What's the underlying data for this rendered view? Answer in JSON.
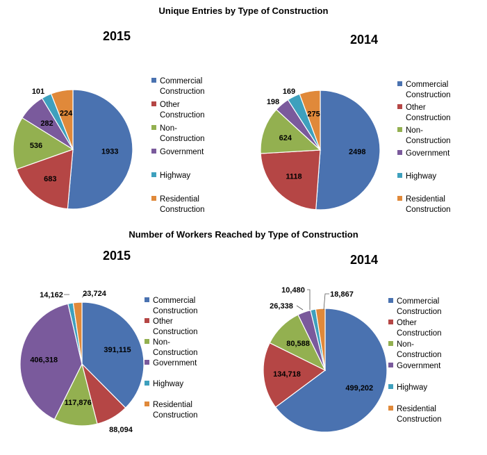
{
  "titles": {
    "top": "Unique Entries by Type of Construction",
    "bottom": "Number of Workers Reached by Type of Construction"
  },
  "legend": [
    {
      "label": "Commercial Construction",
      "color": "#4a72b0"
    },
    {
      "label": "Other Construction",
      "color": "#b54645"
    },
    {
      "label": "Non-Construction",
      "color": "#93b050"
    },
    {
      "label": "Government",
      "color": "#7a5a9c"
    },
    {
      "label": "Highway",
      "color": "#3ea0bd"
    },
    {
      "label": "Residential Construction",
      "color": "#e0893a"
    }
  ],
  "chart_data": [
    {
      "type": "pie",
      "section": "Unique Entries by Type of Construction",
      "title": "2015",
      "categories": [
        "Commercial Construction",
        "Other Construction",
        "Non-Construction",
        "Government",
        "Highway",
        "Residential Construction"
      ],
      "values": [
        1933,
        683,
        536,
        282,
        101,
        224
      ],
      "labels": [
        "1933",
        "683",
        "536",
        "282",
        "101",
        "224"
      ],
      "legend_position": "right"
    },
    {
      "type": "pie",
      "section": "Unique Entries by Type of Construction",
      "title": "2014",
      "categories": [
        "Commercial Construction",
        "Other Construction",
        "Non-Construction",
        "Government",
        "Highway",
        "Residential Construction"
      ],
      "values": [
        2498,
        1118,
        624,
        198,
        169,
        275
      ],
      "labels": [
        "2498",
        "1118",
        "624",
        "198",
        "169",
        "275"
      ],
      "legend_position": "right"
    },
    {
      "type": "pie",
      "section": "Number of Workers Reached by Type of Construction",
      "title": "2015",
      "categories": [
        "Commercial Construction",
        "Other Construction",
        "Non-Construction",
        "Government",
        "Highway",
        "Residential Construction"
      ],
      "values": [
        391115,
        88094,
        117876,
        406318,
        14162,
        23724
      ],
      "labels": [
        "391,115",
        "88,094",
        "117,876",
        "406,318",
        "14,162",
        "23,724"
      ],
      "legend_position": "right"
    },
    {
      "type": "pie",
      "section": "Number of Workers Reached by Type of Construction",
      "title": "2014",
      "categories": [
        "Commercial Construction",
        "Other Construction",
        "Non-Construction",
        "Government",
        "Highway",
        "Residential Construction"
      ],
      "values": [
        499202,
        134718,
        80588,
        26338,
        10480,
        18867
      ],
      "labels": [
        "499,202",
        "134,718",
        "80,588",
        "26,338",
        "10,480",
        "18,867"
      ],
      "legend_position": "right"
    }
  ]
}
